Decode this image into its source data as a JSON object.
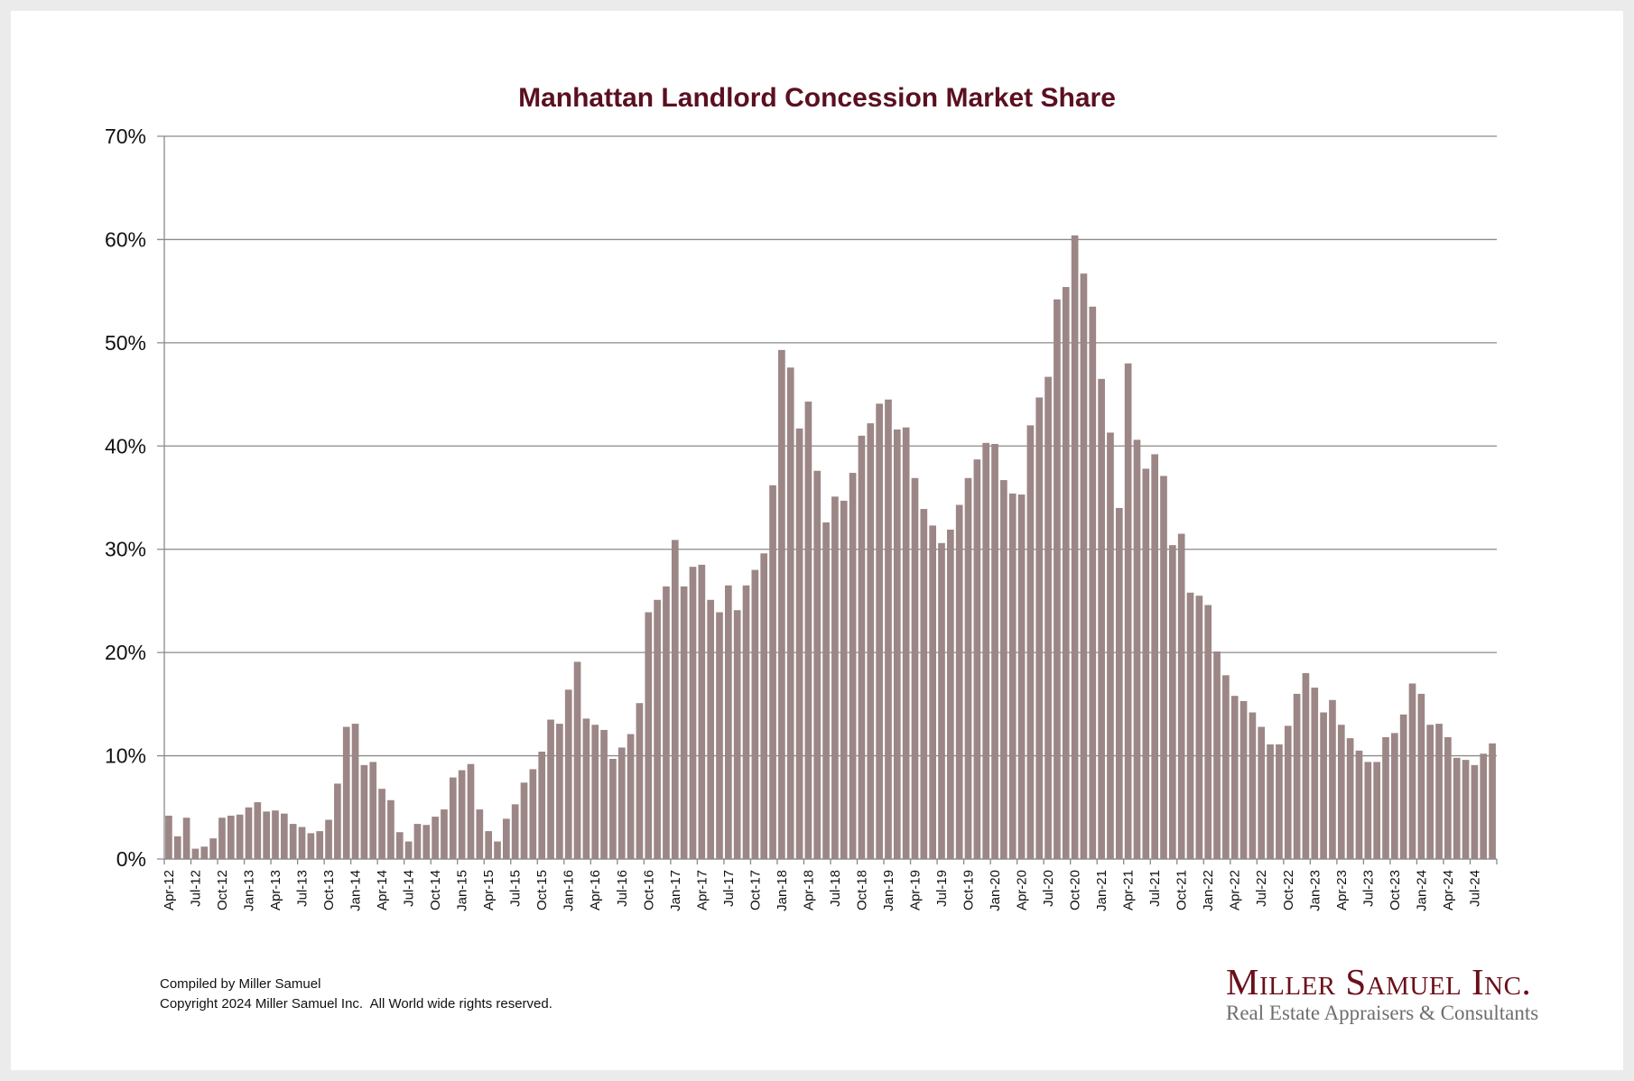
{
  "chart_data": {
    "type": "bar",
    "title": "Manhattan Landlord Concession Market Share",
    "xlabel": "",
    "ylabel": "",
    "ylim": [
      0,
      70
    ],
    "yticks": [
      "0%",
      "10%",
      "20%",
      "30%",
      "40%",
      "50%",
      "60%",
      "70%"
    ],
    "ytick_values": [
      0,
      10,
      20,
      30,
      40,
      50,
      60,
      70
    ],
    "grid": true,
    "legend": "none",
    "bar_color": "#9c8686",
    "start_month": "Apr-12",
    "tick_every": 3,
    "categories": [
      "Apr-12",
      "May-12",
      "Jun-12",
      "Jul-12",
      "Aug-12",
      "Sep-12",
      "Oct-12",
      "Nov-12",
      "Dec-12",
      "Jan-13",
      "Feb-13",
      "Mar-13",
      "Apr-13",
      "May-13",
      "Jun-13",
      "Jul-13",
      "Aug-13",
      "Sep-13",
      "Oct-13",
      "Nov-13",
      "Dec-13",
      "Jan-14",
      "Feb-14",
      "Mar-14",
      "Apr-14",
      "May-14",
      "Jun-14",
      "Jul-14",
      "Aug-14",
      "Sep-14",
      "Oct-14",
      "Nov-14",
      "Dec-14",
      "Jan-15",
      "Feb-15",
      "Mar-15",
      "Apr-15",
      "May-15",
      "Jun-15",
      "Jul-15",
      "Aug-15",
      "Sep-15",
      "Oct-15",
      "Nov-15",
      "Dec-15",
      "Jan-16",
      "Feb-16",
      "Mar-16",
      "Apr-16",
      "May-16",
      "Jun-16",
      "Jul-16",
      "Aug-16",
      "Sep-16",
      "Oct-16",
      "Nov-16",
      "Dec-16",
      "Jan-17",
      "Feb-17",
      "Mar-17",
      "Apr-17",
      "May-17",
      "Jun-17",
      "Jul-17",
      "Aug-17",
      "Sep-17",
      "Oct-17",
      "Nov-17",
      "Dec-17",
      "Jan-18",
      "Feb-18",
      "Mar-18",
      "Apr-18",
      "May-18",
      "Jun-18",
      "Jul-18",
      "Aug-18",
      "Sep-18",
      "Oct-18",
      "Nov-18",
      "Dec-18",
      "Jan-19",
      "Feb-19",
      "Mar-19",
      "Apr-19",
      "May-19",
      "Jun-19",
      "Jul-19",
      "Aug-19",
      "Sep-19",
      "Oct-19",
      "Nov-19",
      "Dec-19",
      "Jan-20",
      "Feb-20",
      "Mar-20",
      "Apr-20",
      "May-20",
      "Jun-20",
      "Jul-20",
      "Aug-20",
      "Sep-20",
      "Oct-20",
      "Nov-20",
      "Dec-20",
      "Jan-21",
      "Feb-21",
      "Mar-21",
      "Apr-21",
      "May-21",
      "Jun-21",
      "Jul-21",
      "Aug-21",
      "Sep-21",
      "Oct-21",
      "Nov-21",
      "Dec-21",
      "Jan-22",
      "Feb-22",
      "Mar-22",
      "Apr-22",
      "May-22",
      "Jun-22",
      "Jul-22",
      "Aug-22",
      "Sep-22",
      "Oct-22",
      "Nov-22",
      "Dec-22",
      "Jan-23",
      "Feb-23",
      "Mar-23",
      "Apr-23",
      "May-23",
      "Jun-23",
      "Jul-23",
      "Aug-23",
      "Sep-23",
      "Oct-23",
      "Nov-23",
      "Dec-23",
      "Jan-24",
      "Feb-24",
      "Mar-24",
      "Apr-24",
      "May-24",
      "Jun-24",
      "Jul-24",
      "Aug-24",
      "Sep-24"
    ],
    "values": [
      4.2,
      2.2,
      4.0,
      1.0,
      1.2,
      2.0,
      4.0,
      4.2,
      4.3,
      5.0,
      5.5,
      4.6,
      4.7,
      4.4,
      3.4,
      3.1,
      2.5,
      2.7,
      3.8,
      7.3,
      12.8,
      13.1,
      9.1,
      9.4,
      6.8,
      5.7,
      2.6,
      1.7,
      3.4,
      3.3,
      4.1,
      4.8,
      7.9,
      8.6,
      9.2,
      4.8,
      2.7,
      1.7,
      3.9,
      5.3,
      7.4,
      8.7,
      10.4,
      13.5,
      13.1,
      16.4,
      19.1,
      13.6,
      13.0,
      12.5,
      9.7,
      10.8,
      12.1,
      15.1,
      23.9,
      25.1,
      26.4,
      30.9,
      26.4,
      28.3,
      28.5,
      25.1,
      23.9,
      26.5,
      24.1,
      26.5,
      28.0,
      29.6,
      36.2,
      49.3,
      47.6,
      41.7,
      44.3,
      37.6,
      32.6,
      35.1,
      34.7,
      37.4,
      41.0,
      42.2,
      44.1,
      44.5,
      41.6,
      41.8,
      36.9,
      33.9,
      32.3,
      30.6,
      31.9,
      34.3,
      36.9,
      38.7,
      40.3,
      40.2,
      36.7,
      35.4,
      35.3,
      42.0,
      44.7,
      46.7,
      54.2,
      55.4,
      60.4,
      56.7,
      53.5,
      46.5,
      41.3,
      34.0,
      48.0,
      40.6,
      37.8,
      39.2,
      37.1,
      30.4,
      31.5,
      25.8,
      25.5,
      24.6,
      20.1,
      17.8,
      15.8,
      15.3,
      14.2,
      12.8,
      11.1,
      11.1,
      12.9,
      16.0,
      18.0,
      16.6,
      14.2,
      15.4,
      13.0,
      11.7,
      10.5,
      9.4,
      9.4,
      11.8,
      12.2,
      14.0,
      17.0,
      16.0,
      13.0,
      13.1,
      11.8,
      9.8,
      9.6,
      9.1,
      10.2,
      11.2
    ]
  },
  "footer": {
    "compiled_by": "Compiled by Miller Samuel",
    "copyright": "Copyright 2024 Miller Samuel Inc.  All World wide rights reserved."
  },
  "logo": {
    "name": "Miller Samuel Inc.",
    "tagline": "Real Estate Appraisers & Consultants"
  }
}
